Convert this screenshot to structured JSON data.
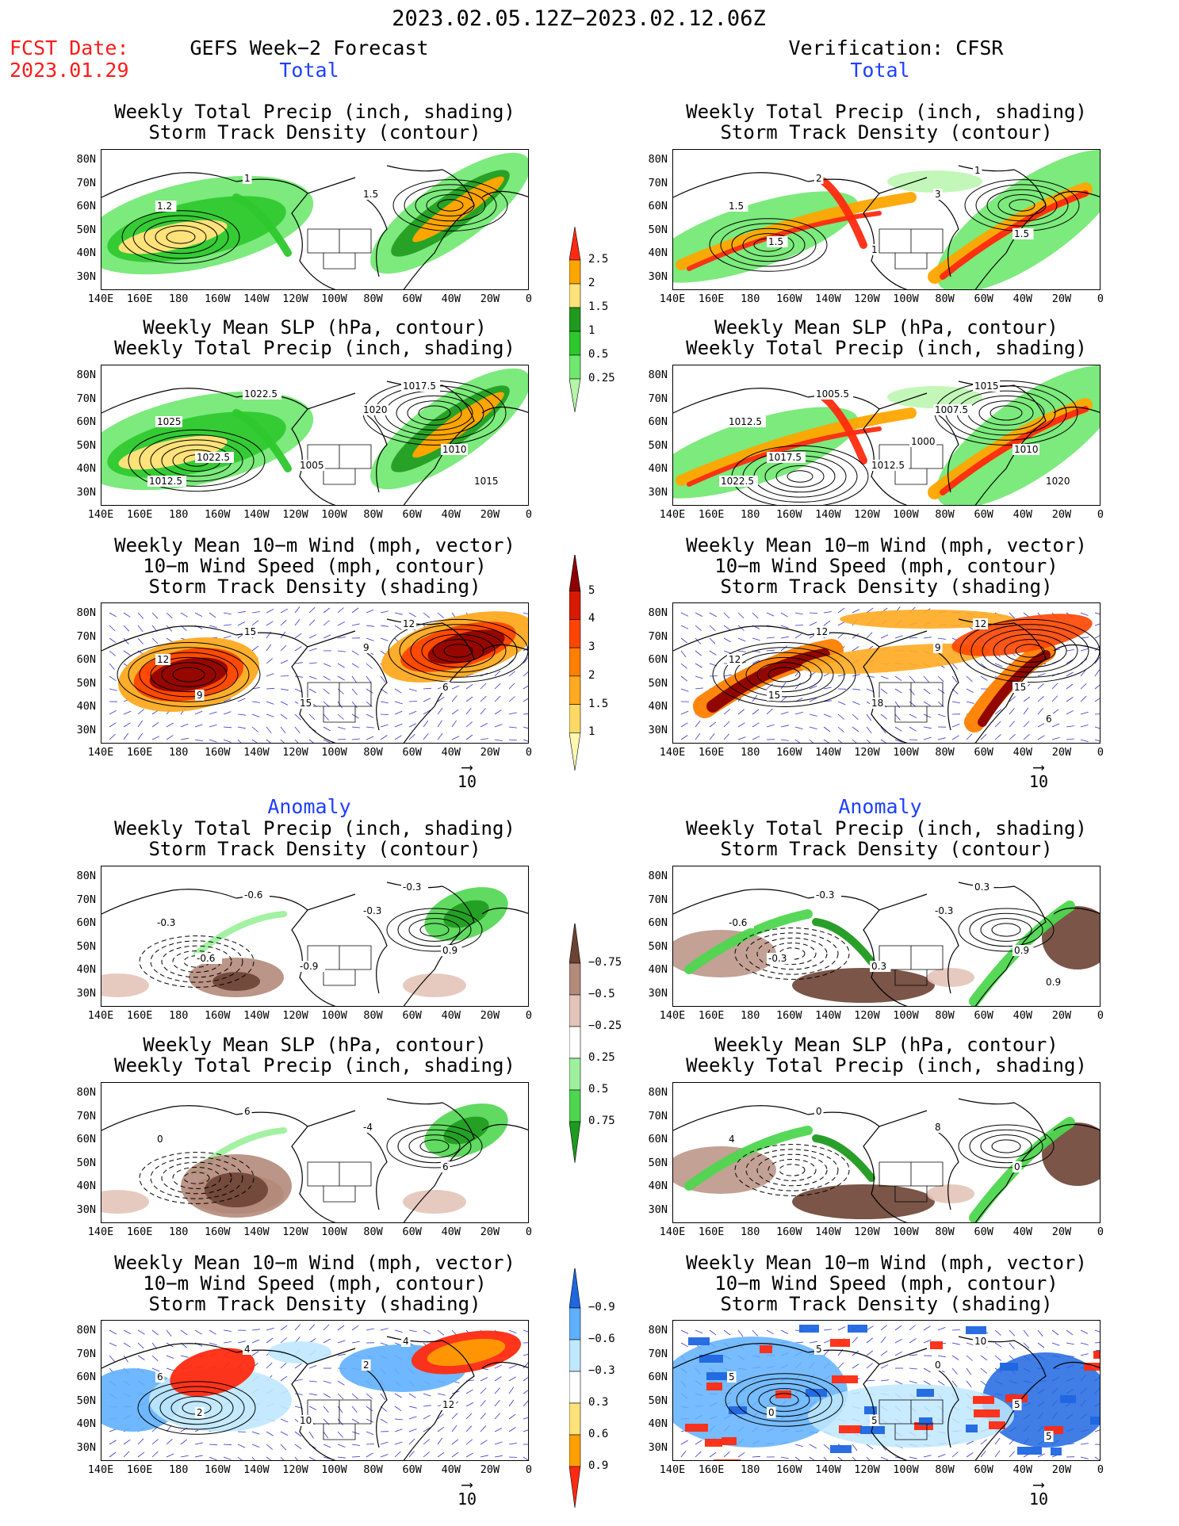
{
  "header": {
    "period": "2023.02.05.12Z−2023.02.12.06Z",
    "fcst_label": "FCST Date:",
    "fcst_date": "2023.01.29",
    "left_title": "GEFS Week−2 Forecast",
    "right_title": "Verification: CFSR",
    "section_total": "Total",
    "section_anomaly": "Anomaly"
  },
  "panel_titles": {
    "precip_storm": [
      "Weekly Total Precip (inch, shading)",
      "Storm Track Density (contour)"
    ],
    "slp_precip": [
      "Weekly Mean SLP (hPa, contour)",
      "Weekly Total Precip (inch, shading)"
    ],
    "wind_storm": [
      "Weekly Mean 10−m Wind (mph, vector)",
      "10−m Wind Speed (mph, contour)",
      "Storm Track Density (shading)"
    ]
  },
  "axes": {
    "lat_labels": [
      "80N",
      "70N",
      "60N",
      "50N",
      "40N",
      "30N"
    ],
    "lon_labels": [
      "140E",
      "160E",
      "180",
      "160W",
      "140W",
      "120W",
      "100W",
      "80W",
      "60W",
      "40W",
      "20W",
      "0"
    ]
  },
  "vector_ref": "10",
  "colorbars": {
    "precip_total": {
      "labels": [
        "0.25",
        "0.5",
        "1",
        "1.5",
        "2",
        "2.5"
      ],
      "colors": [
        "#b4f5a8",
        "#6ee86e",
        "#2dc82d",
        "#1e9a1e",
        "#ffe27a",
        "#ffa500",
        "#ff2a10"
      ]
    },
    "storm_total": {
      "labels": [
        "1",
        "1.5",
        "2",
        "3",
        "4",
        "5"
      ],
      "colors": [
        "#fff7b0",
        "#ffd966",
        "#ffaa20",
        "#ff7f00",
        "#ff4500",
        "#d81a00",
        "#8b0000"
      ]
    },
    "precip_anom": {
      "labels": [
        "0.75",
        "0.5",
        "0.25",
        "−0.25",
        "−0.5",
        "−0.75"
      ],
      "colors": [
        "#1e9a1e",
        "#4fd64f",
        "#9ef09e",
        "#ffffff",
        "#e3c4b8",
        "#b48a7a",
        "#6b4234"
      ]
    },
    "storm_anom": {
      "labels": [
        "0.9",
        "0.6",
        "0.3",
        "−0.3",
        "−0.6",
        "−0.9"
      ],
      "colors": [
        "#ff2a10",
        "#ffa000",
        "#ffe27a",
        "#ffffff",
        "#bfe8ff",
        "#5fb0ff",
        "#1f66e0"
      ]
    }
  },
  "map_labels": {
    "f_pr_t": [
      "1.2",
      "1",
      "1.5"
    ],
    "f_slp_t": [
      "1025",
      "1022.5",
      "1020",
      "1010",
      "1005",
      "1022.5",
      "1017.5",
      "1015",
      "1012.5"
    ],
    "f_wd_t": [
      "12",
      "15",
      "9",
      "6",
      "15",
      "9",
      "12"
    ],
    "v_pr_t": [
      "1.5",
      "2",
      "3",
      "1.5",
      "1",
      "1.5",
      "1"
    ],
    "v_slp_t": [
      "1012.5",
      "1005.5",
      "1007.5",
      "1010",
      "1012.5",
      "1017.5",
      "1015",
      "1020",
      "1022.5",
      "1000"
    ],
    "v_wd_t": [
      "12",
      "12",
      "9",
      "15",
      "18",
      "15",
      "12",
      "6"
    ],
    "f_pr_a": [
      "-0.3",
      "-0.6",
      "-0.3",
      "0.9",
      "-0.9",
      "-0.6",
      "-0.3"
    ],
    "f_slp_a": [
      "0",
      "6",
      "-4",
      "6"
    ],
    "f_wd_a": [
      "6",
      "4",
      "2",
      "12",
      "10",
      "2",
      "4"
    ],
    "v_pr_a": [
      "-0.6",
      "-0.3",
      "-0.3",
      "0.9",
      "0.3",
      "-0.3",
      "0.3",
      "0.9"
    ],
    "v_slp_a": [
      "4",
      "0",
      "8",
      "0"
    ],
    "v_wd_a": [
      "5",
      "5",
      "0",
      "5",
      "5",
      "0",
      "10",
      "5"
    ]
  }
}
